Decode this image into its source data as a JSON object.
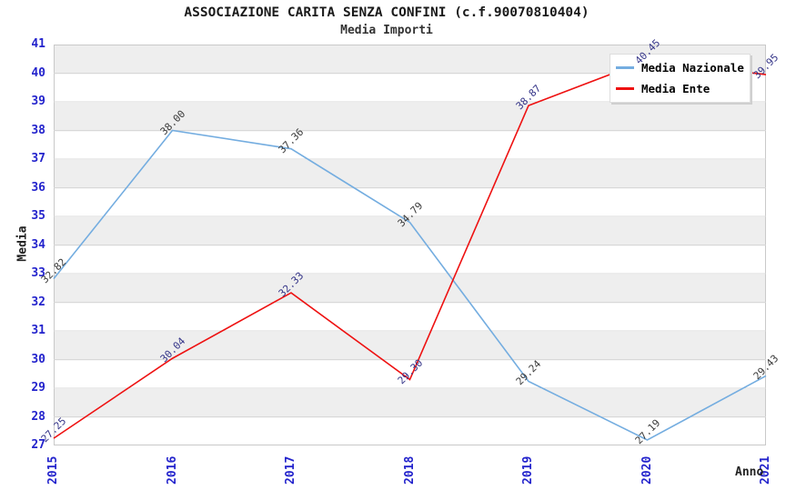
{
  "chart_data": {
    "type": "line",
    "title": "ASSOCIAZIONE CARITA SENZA CONFINI (c.f.90070810404)",
    "subtitle": "Media Importi",
    "xlabel": "Anno",
    "ylabel": "Media",
    "categories": [
      "2015",
      "2016",
      "2017",
      "2018",
      "2019",
      "2020",
      "2021"
    ],
    "ylim": [
      27,
      41
    ],
    "ytick_step": 1,
    "grid": true,
    "legend_position": "top-right",
    "background_band_colors": [
      "#eeeeee",
      "#ffffff"
    ],
    "axis_tick_color": "#2323cc",
    "gridline_color": "#d8d8d8",
    "plot_border_color": "#c9c9c9",
    "series": [
      {
        "name": "Media Nazionale",
        "color": "#74ade0",
        "label_color": "#3a3a3a",
        "values": [
          32.82,
          38.0,
          37.36,
          34.79,
          29.24,
          27.19,
          29.43
        ]
      },
      {
        "name": "Media Ente",
        "color": "#ee1111",
        "label_color": "#343488",
        "values": [
          27.25,
          30.04,
          32.33,
          29.3,
          38.87,
          40.45,
          39.95
        ]
      }
    ]
  }
}
